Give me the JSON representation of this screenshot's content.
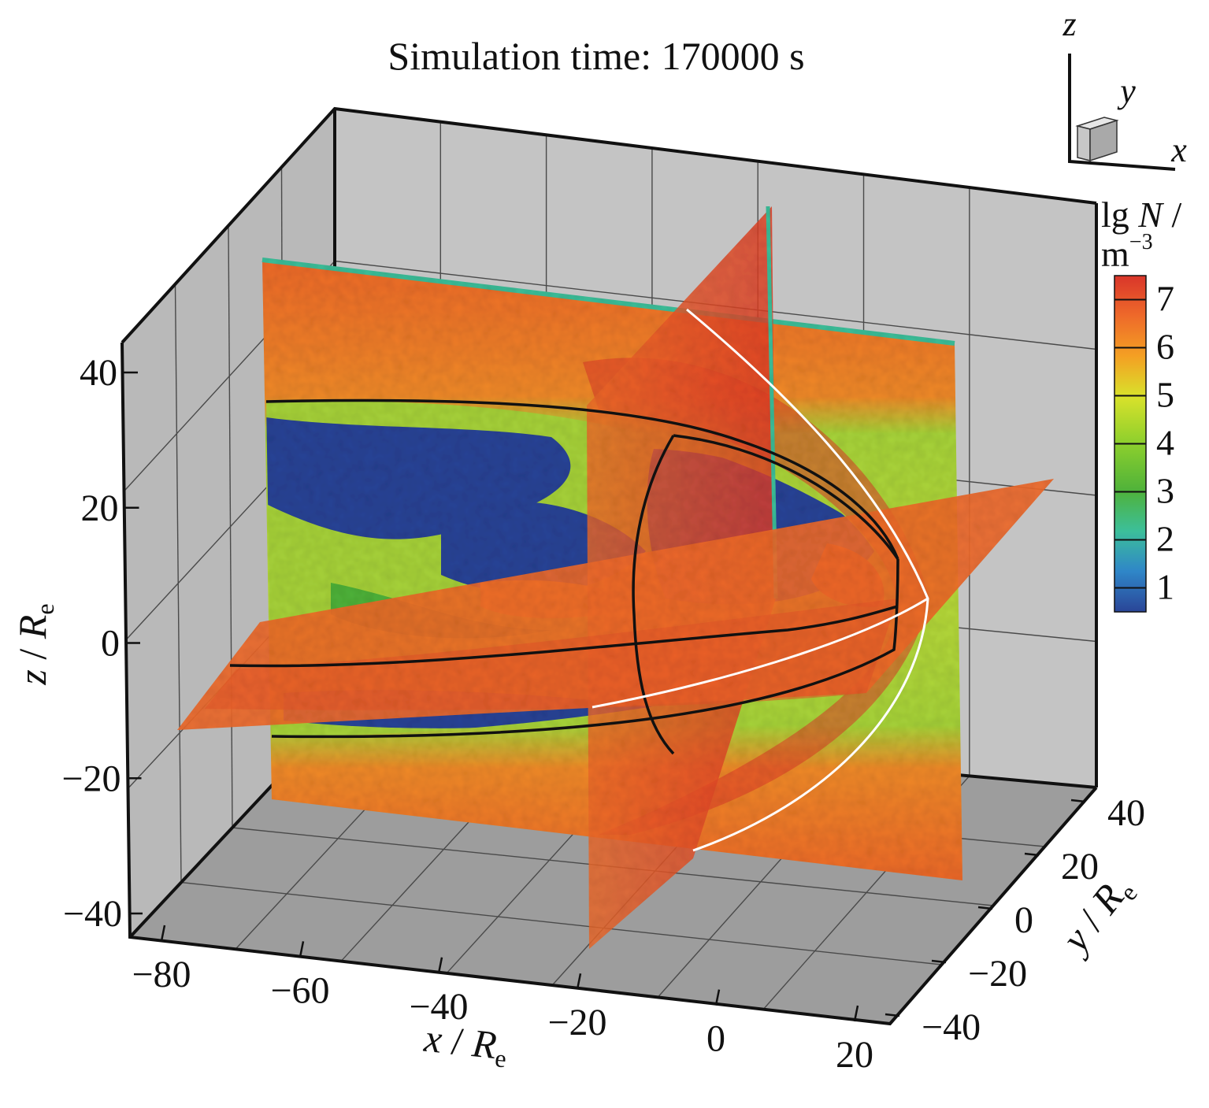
{
  "chart_data": {
    "type": "heatmap",
    "title": "Simulation time: 170000 s",
    "axes": {
      "x": {
        "label": "x",
        "unit": "R",
        "unit_sub": "e",
        "ticks": [
          "−80",
          "−60",
          "−40",
          "−20",
          "0",
          "20"
        ]
      },
      "y": {
        "label": "y",
        "unit": "R",
        "unit_sub": "e",
        "ticks": [
          "40",
          "20",
          "0",
          "−20",
          "−40"
        ]
      },
      "z": {
        "label": "z",
        "unit": "R",
        "unit_sub": "e",
        "ticks": [
          "40",
          "20",
          "0",
          "−20",
          "−40"
        ]
      }
    },
    "colorbar": {
      "label_line1_prefix": "lg ",
      "label_line1_var": "N",
      "label_line1_suffix": " /",
      "label_line2_base": "m",
      "label_line2_exp": "−3",
      "ticks": [
        "7",
        "6",
        "5",
        "4",
        "3",
        "2",
        "1"
      ],
      "range": [
        0.5,
        7.5
      ],
      "colormap": [
        "#2a4597",
        "#2f86c8",
        "#3cbf9a",
        "#4fb23a",
        "#8ccf2d",
        "#d9e22b",
        "#f4a023",
        "#ee6a2a",
        "#d9352a"
      ]
    },
    "orientation_triad": {
      "z": "z",
      "y": "y",
      "x": "x"
    },
    "grid": true,
    "colors": {
      "box_walls": "#c4c4c4",
      "floor": "#9d9d9d",
      "magnetopause_line": "#111111",
      "bow_shock_line": "#ffffff",
      "solar_wind_density": "#ef6a2b",
      "magnetosheath_density": "#e2452a",
      "lobe_density": "#2a4597"
    }
  }
}
